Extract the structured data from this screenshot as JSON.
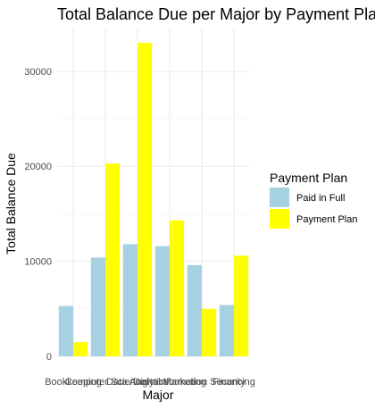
{
  "chart_data": {
    "type": "bar",
    "title": "Total Balance Due per Major by Payment Plan",
    "xlabel": "Major",
    "ylabel": "Total Balance Due",
    "categories": [
      "Bookkeeping",
      "Computer Science",
      "Data Analytics",
      "Digital Marketing",
      "Information Security",
      "Financing"
    ],
    "series": [
      {
        "name": "Paid in Full",
        "color": "#a6d1e0",
        "values": [
          5300,
          10400,
          11800,
          11600,
          9600,
          5400
        ]
      },
      {
        "name": "Payment Plan",
        "color": "#ffff00",
        "values": [
          1500,
          20300,
          33000,
          14300,
          5000,
          10600
        ]
      }
    ],
    "ylim": [
      0,
      34500
    ],
    "yticks": [
      0,
      10000,
      20000,
      30000
    ],
    "ytick_labels": [
      "0",
      "10000",
      "20000",
      "30000"
    ],
    "grid": true,
    "legend": {
      "title": "Payment Plan",
      "position": "right"
    }
  }
}
